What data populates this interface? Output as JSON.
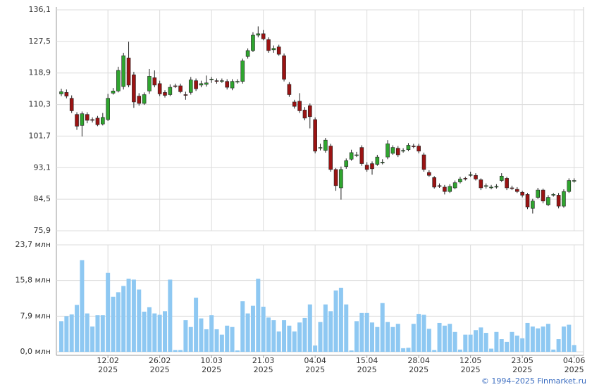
{
  "chart_data": {
    "type": "candlestick",
    "categories": [
      null,
      null,
      null,
      null,
      null,
      null,
      null,
      null,
      null,
      "12.02",
      null,
      null,
      null,
      null,
      null,
      null,
      null,
      null,
      null,
      "26.02",
      null,
      null,
      null,
      null,
      null,
      null,
      null,
      null,
      null,
      "10.03",
      null,
      null,
      null,
      null,
      null,
      null,
      null,
      null,
      null,
      "21.03",
      null,
      null,
      null,
      null,
      null,
      null,
      null,
      null,
      null,
      "04.04",
      null,
      null,
      null,
      null,
      null,
      null,
      null,
      null,
      null,
      "15.04",
      null,
      null,
      null,
      null,
      null,
      null,
      null,
      null,
      null,
      "28.04",
      null,
      null,
      null,
      null,
      null,
      null,
      null,
      null,
      null,
      "12.05",
      null,
      null,
      null,
      null,
      null,
      null,
      null,
      null,
      null,
      "23.05",
      null,
      null,
      null,
      null,
      null,
      null,
      null,
      null,
      null,
      "04.06"
    ],
    "x_year": "2025",
    "open": [
      113.2,
      113.6,
      112.0,
      107.6,
      104.6,
      107.6,
      106.2,
      106.6,
      105.0,
      106.2,
      113.4,
      114.0,
      115.2,
      123.0,
      118.4,
      112.6,
      110.6,
      114.0,
      117.6,
      116.0,
      113.6,
      113.0,
      115.4,
      115.4,
      113.0,
      113.6,
      116.8,
      115.6,
      115.8,
      117.0,
      116.8,
      116.6,
      116.6,
      114.8,
      116.4,
      116.6,
      123.4,
      125.0,
      129.2,
      129.6,
      128.0,
      125.2,
      126.0,
      123.6,
      115.8,
      111.0,
      111.2,
      108.8,
      110.0,
      106.2,
      98.4,
      97.8,
      99.0,
      92.6,
      87.6,
      93.4,
      95.4,
      96.4,
      98.6,
      93.8,
      94.2,
      94.0,
      94.4,
      96.0,
      97.0,
      98.4,
      97.6,
      98.0,
      99.0,
      99.0,
      96.6,
      91.8,
      90.4,
      88.2,
      87.8,
      86.6,
      87.6,
      89.2,
      90.2,
      91.0,
      91.0,
      89.8,
      88.0,
      87.8,
      87.8,
      89.6,
      90.2,
      87.6,
      87.2,
      86.4,
      85.8,
      82.0,
      85.0,
      87.0,
      83.0,
      85.6,
      85.6,
      82.6,
      86.6,
      89.4
    ],
    "high": [
      114.6,
      114.4,
      112.8,
      108.2,
      108.4,
      108.2,
      106.8,
      107.2,
      108.0,
      113.2,
      114.8,
      120.6,
      124.4,
      127.4,
      119.2,
      113.4,
      113.6,
      120.0,
      119.6,
      116.8,
      114.2,
      115.8,
      116.0,
      116.0,
      113.8,
      117.8,
      117.4,
      116.8,
      118.2,
      117.8,
      117.4,
      117.4,
      117.2,
      117.2,
      117.2,
      122.8,
      125.6,
      130.0,
      131.6,
      130.6,
      128.6,
      126.4,
      126.6,
      124.2,
      116.4,
      111.6,
      113.4,
      109.6,
      110.6,
      106.8,
      99.6,
      101.2,
      99.6,
      93.0,
      93.4,
      95.6,
      98.0,
      97.4,
      99.2,
      94.6,
      94.8,
      96.6,
      95.4,
      100.6,
      99.2,
      99.0,
      98.4,
      99.8,
      99.6,
      99.6,
      97.2,
      92.4,
      90.8,
      88.8,
      88.4,
      88.6,
      89.6,
      90.6,
      90.6,
      92.0,
      91.6,
      90.2,
      88.8,
      88.4,
      88.6,
      91.6,
      90.6,
      88.2,
      87.8,
      86.8,
      86.2,
      84.6,
      87.6,
      87.4,
      85.6,
      86.2,
      86.2,
      87.2,
      90.2,
      90.2
    ],
    "low": [
      112.6,
      112.0,
      108.0,
      103.4,
      101.6,
      105.2,
      105.4,
      104.4,
      104.6,
      105.8,
      113.0,
      113.6,
      114.4,
      115.0,
      109.4,
      110.0,
      110.2,
      113.2,
      115.0,
      112.6,
      112.2,
      112.6,
      114.8,
      113.4,
      111.6,
      113.0,
      114.0,
      115.0,
      115.2,
      116.2,
      116.0,
      116.2,
      114.4,
      114.2,
      116.0,
      116.0,
      122.8,
      124.6,
      128.6,
      127.8,
      124.4,
      124.4,
      123.6,
      116.6,
      112.4,
      109.2,
      108.0,
      106.0,
      103.8,
      97.0,
      97.8,
      97.2,
      92.0,
      86.8,
      84.4,
      92.8,
      95.0,
      96.0,
      93.6,
      92.0,
      91.2,
      93.6,
      94.0,
      95.4,
      96.6,
      96.0,
      97.2,
      97.6,
      98.4,
      97.0,
      92.0,
      90.6,
      87.4,
      87.6,
      85.8,
      86.2,
      87.2,
      88.8,
      89.6,
      90.6,
      89.6,
      87.0,
      87.4,
      87.2,
      87.4,
      89.2,
      87.0,
      87.0,
      86.2,
      85.0,
      81.8,
      80.6,
      84.6,
      83.4,
      82.6,
      85.2,
      82.0,
      82.2,
      86.2,
      89.0
    ],
    "close": [
      113.8,
      112.6,
      108.6,
      104.4,
      107.8,
      106.0,
      106.0,
      104.8,
      106.8,
      112.0,
      114.0,
      119.6,
      123.6,
      115.6,
      111.0,
      110.6,
      113.0,
      118.0,
      115.6,
      113.2,
      112.8,
      115.0,
      115.2,
      113.8,
      112.8,
      117.0,
      114.6,
      116.0,
      116.2,
      117.2,
      116.6,
      116.8,
      115.0,
      116.6,
      116.6,
      122.2,
      125.0,
      129.2,
      129.6,
      128.2,
      125.0,
      125.6,
      124.0,
      117.2,
      113.0,
      109.8,
      108.6,
      106.6,
      107.0,
      97.6,
      98.6,
      100.6,
      92.6,
      88.2,
      92.6,
      95.0,
      97.2,
      96.6,
      94.2,
      92.6,
      92.8,
      96.0,
      94.6,
      99.6,
      98.6,
      96.6,
      97.8,
      99.2,
      98.8,
      97.6,
      92.6,
      91.0,
      87.8,
      88.0,
      86.6,
      88.0,
      89.0,
      90.0,
      90.0,
      91.2,
      90.0,
      87.6,
      88.2,
      87.8,
      88.0,
      90.8,
      87.6,
      87.4,
      86.6,
      85.6,
      82.4,
      84.0,
      87.0,
      84.0,
      85.0,
      85.8,
      82.6,
      86.6,
      89.6,
      89.6
    ],
    "up_color": "#2fa52f",
    "down_color": "#9b1313",
    "ylim": [
      75.9,
      136.1
    ],
    "yticks": [
      {
        "value": 75.9,
        "label": "75,9"
      },
      {
        "value": 84.5,
        "label": "84,5"
      },
      {
        "value": 93.1,
        "label": "93,1"
      },
      {
        "value": 101.7,
        "label": "101,7"
      },
      {
        "value": 110.3,
        "label": "110,3"
      },
      {
        "value": 118.9,
        "label": "118,9"
      },
      {
        "value": 127.5,
        "label": "127,5"
      },
      {
        "value": 136.1,
        "label": "136,1"
      }
    ],
    "grid": true,
    "volume": {
      "color": "#8ec8f2",
      "values": [
        6.8,
        7.9,
        8.3,
        10.4,
        20.3,
        8.5,
        5.6,
        8.1,
        8.1,
        17.5,
        12.2,
        13.2,
        14.6,
        16.2,
        16.0,
        13.8,
        8.9,
        9.9,
        8.5,
        8.2,
        9.0,
        16.0,
        0.4,
        0.4,
        7.0,
        5.5,
        12.0,
        7.4,
        5.0,
        8.1,
        5.0,
        3.8,
        5.8,
        5.5,
        0.3,
        11.2,
        8.5,
        10.2,
        16.2,
        10.0,
        7.6,
        7.0,
        4.5,
        7.0,
        5.8,
        4.5,
        6.5,
        7.5,
        10.5,
        1.4,
        6.6,
        10.5,
        9.0,
        13.6,
        14.2,
        10.5,
        0.3,
        6.8,
        8.6,
        8.6,
        6.5,
        5.5,
        10.8,
        6.6,
        5.5,
        6.2,
        0.8,
        0.9,
        6.2,
        8.4,
        8.2,
        5.1,
        0.4,
        6.4,
        5.8,
        6.2,
        4.4,
        0.5,
        3.8,
        3.8,
        4.8,
        5.4,
        4.2,
        0.7,
        4.4,
        2.8,
        2.2,
        4.4,
        3.6,
        3.0,
        6.4,
        5.6,
        5.2,
        5.6,
        6.2,
        0.5,
        2.8,
        5.6,
        6.0,
        1.5
      ],
      "ylim": [
        0,
        23.7
      ],
      "yticks": [
        {
          "value": 0,
          "label": "0,0 млн"
        },
        {
          "value": 7.9,
          "label": "7,9 млн"
        },
        {
          "value": 15.8,
          "label": "15,8 млн"
        },
        {
          "value": 23.7,
          "label": "23,7 млн"
        }
      ]
    }
  },
  "footer": "© 1994–2025 Finmarket.ru"
}
